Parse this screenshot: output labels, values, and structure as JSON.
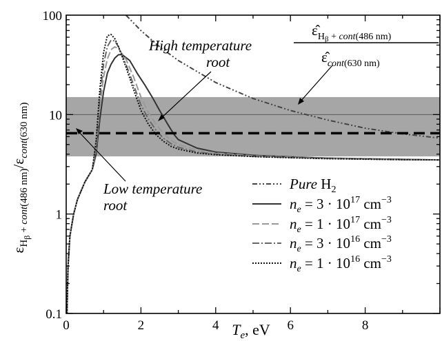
{
  "chart_data": {
    "type": "line",
    "xlabel": {
      "main": "T",
      "sub": "e",
      "rest": ", eV"
    },
    "ylabel": {
      "eps": "ε",
      "sub_num_a": "H",
      "sub_num_b": "β",
      "sub_num_c": " + ",
      "sub_num_d": "cont",
      "sub_num_e": "(486 nm)",
      "slash": "/ε",
      "sub_den_a": "cont",
      "sub_den_b": "(630 nm)"
    },
    "xlim": [
      0,
      10
    ],
    "ylim": [
      0.1,
      100
    ],
    "y_scale": "log",
    "x_ticks": [
      "0",
      "2",
      "4",
      "6",
      "8"
    ],
    "y_ticks": [
      "0.1",
      "1",
      "10",
      "100"
    ],
    "grid": false,
    "band": {
      "low": 3.8,
      "high": 15
    },
    "measured_ratio": 6.5,
    "series": [
      {
        "name": "Pure H₂",
        "style": "dashdotdot",
        "x": [
          1.6,
          2.0,
          2.5,
          3.0,
          4.0,
          5.0,
          6.0,
          7.0,
          8.0,
          9.0,
          10.0
        ],
        "y": [
          100,
          70,
          48,
          35,
          21,
          14.5,
          11,
          8.8,
          7.3,
          6.4,
          5.8
        ]
      },
      {
        "name": "n_e = 3·10^17 cm^-3",
        "style": "solid",
        "x": [
          0.02,
          0.05,
          0.1,
          0.2,
          0.3,
          0.5,
          0.7,
          0.8,
          0.9,
          1.0,
          1.1,
          1.2,
          1.3,
          1.4,
          1.5,
          1.7,
          1.9,
          2.1,
          2.3,
          2.5,
          2.6,
          2.7,
          2.8,
          2.9,
          3.0,
          3.5,
          4.0,
          5.0,
          6.0,
          7.0,
          8.0,
          9.0,
          10.0
        ],
        "y": [
          0.1,
          0.3,
          0.6,
          1.0,
          1.4,
          2.1,
          2.8,
          4.0,
          9.0,
          17,
          26,
          32,
          37,
          40,
          40,
          35,
          26,
          20,
          15,
          11,
          9.5,
          8.2,
          7.1,
          6.2,
          5.6,
          4.6,
          4.2,
          3.9,
          3.75,
          3.65,
          3.6,
          3.55,
          3.5
        ]
      },
      {
        "name": "n_e = 1·10^17 cm^-3",
        "style": "longdash",
        "x": [
          0.02,
          0.05,
          0.1,
          0.2,
          0.3,
          0.5,
          0.7,
          0.8,
          0.9,
          1.0,
          1.1,
          1.2,
          1.3,
          1.4,
          1.6,
          1.8,
          2.0,
          2.2,
          2.4,
          2.6,
          2.8,
          3.0,
          3.5,
          4.0,
          5.0,
          6.0,
          7.0,
          8.0,
          9.0,
          10.0
        ],
        "y": [
          0.1,
          0.3,
          0.6,
          1.0,
          1.4,
          2.1,
          2.8,
          4.5,
          12,
          24,
          36,
          45,
          48,
          46,
          36,
          24,
          15,
          10.5,
          8.0,
          6.5,
          5.5,
          5.0,
          4.4,
          4.1,
          3.85,
          3.72,
          3.63,
          3.58,
          3.53,
          3.5
        ]
      },
      {
        "name": "n_e = 3·10^16 cm^-3",
        "style": "dashdot",
        "x": [
          0.02,
          0.05,
          0.1,
          0.2,
          0.3,
          0.5,
          0.7,
          0.8,
          0.9,
          1.0,
          1.1,
          1.2,
          1.3,
          1.4,
          1.6,
          1.8,
          2.0,
          2.2,
          2.4,
          2.6,
          2.8,
          3.0,
          3.5,
          4.0,
          5.0,
          6.0,
          7.0,
          8.0,
          9.0,
          10.0
        ],
        "y": [
          0.1,
          0.3,
          0.6,
          1.0,
          1.4,
          2.1,
          2.8,
          5.0,
          15,
          32,
          48,
          56,
          55,
          48,
          32,
          20,
          12.5,
          9.0,
          7.0,
          5.8,
          5.1,
          4.7,
          4.2,
          4.0,
          3.8,
          3.7,
          3.62,
          3.57,
          3.52,
          3.5
        ]
      },
      {
        "name": "n_e = 1·10^16 cm^-3",
        "style": "dotted",
        "x": [
          0.02,
          0.05,
          0.1,
          0.2,
          0.3,
          0.5,
          0.7,
          0.8,
          0.9,
          1.0,
          1.1,
          1.2,
          1.3,
          1.4,
          1.6,
          1.8,
          2.0,
          2.2,
          2.4,
          2.6,
          2.8,
          3.0,
          3.5,
          4.0,
          5.0,
          6.0,
          7.0,
          8.0,
          9.0,
          10.0
        ],
        "y": [
          0.1,
          0.3,
          0.6,
          1.0,
          1.4,
          2.1,
          2.8,
          5.5,
          18,
          42,
          62,
          64,
          58,
          48,
          30,
          18,
          11,
          8.0,
          6.3,
          5.4,
          4.8,
          4.5,
          4.1,
          3.95,
          3.78,
          3.68,
          3.6,
          3.56,
          3.52,
          3.5
        ]
      }
    ],
    "legend": {
      "pure": {
        "a": "Pure",
        "b": " H",
        "c": "2"
      },
      "entries": [
        {
          "ne": "n",
          "e": "e",
          "eq": " = 3 · 10",
          "exp": "17",
          "unit": " cm",
          "uexp": "−3"
        },
        {
          "ne": "n",
          "e": "e",
          "eq": " = 1 · 10",
          "exp": "17",
          "unit": " cm",
          "uexp": "−3"
        },
        {
          "ne": "n",
          "e": "e",
          "eq": " = 3 · 10",
          "exp": "16",
          "unit": " cm",
          "uexp": "−3"
        },
        {
          "ne": "n",
          "e": "e",
          "eq": " = 1 · 10",
          "exp": "16",
          "unit": " cm",
          "uexp": "−3"
        }
      ],
      "placement": "bottom-right"
    },
    "annotations": {
      "high_root": [
        "High temperature",
        "root"
      ],
      "low_root": [
        "Low temperature",
        "root"
      ],
      "ratio": {
        "num_eps": "ε̂",
        "num_a": "H",
        "num_b": "β",
        "num_c": " + ",
        "num_d": "cont",
        "num_e": "(486 nm)",
        "den_eps": "ε̂",
        "den_a": "cont",
        "den_b": "(630 nm)"
      }
    }
  }
}
